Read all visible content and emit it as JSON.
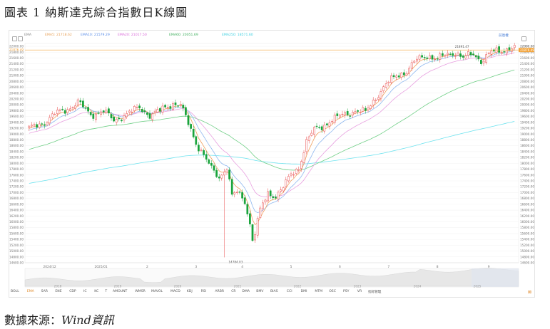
{
  "caption": "圖表 1 納斯達克綜合指數日K線圖",
  "source_label": "數據來源：",
  "source_name": "Wind資訊",
  "toolbar": {
    "ma_label": "EMA",
    "items": [
      {
        "text": "EMA5: 21718.62",
        "color": "#e8a25a"
      },
      {
        "text": "EMA10: 21579.29",
        "color": "#5a8de8"
      },
      {
        "text": "EMA20: 21017.50",
        "color": "#d96bd9"
      },
      {
        "text": "EMA60: 20051.69",
        "color": "#43b060"
      },
      {
        "text": "EMA250: 18571.60",
        "color": "#3fd0e0"
      }
    ],
    "zoom_label": "前復權"
  },
  "indicator_tabs": [
    "BOLL",
    "EMA",
    "SAR",
    "ENE",
    "CDP",
    "IC",
    "KC",
    "T",
    "AMOUNT",
    "WMSR",
    "MAVOL",
    "MACD",
    "KDJ",
    "RSI",
    "ARBR",
    "CR",
    "DMA",
    "BMV",
    "BIAS",
    "CCI",
    "DMI",
    "MTM",
    "OSC",
    "PSY",
    "VR",
    "指标管理"
  ],
  "active_tab": "EMA",
  "colors": {
    "up": "#e84a4a",
    "down": "#19a33b",
    "ema5": "#f0a060",
    "ema10": "#8fb8ef",
    "ema20": "#e8a0e0",
    "ema60": "#6fcf86",
    "ema250": "#6fe3ef",
    "last_price": "#f2a33a"
  },
  "chart_data": {
    "type": "candlestick",
    "title": "",
    "ylim": [
      14600,
      22100
    ],
    "yticks": [
      14600,
      14800,
      15000,
      15200,
      15400,
      15600,
      15800,
      16000,
      16200,
      16400,
      16600,
      16800,
      17000,
      17200,
      17400,
      17600,
      17800,
      18000,
      18200,
      18400,
      18600,
      18800,
      19000,
      19200,
      19400,
      19600,
      19800,
      20000,
      20200,
      20400,
      20600,
      20800,
      21000,
      21200,
      21400,
      21600,
      21800,
      22000
    ],
    "last_price": 21876.49,
    "last_price_label": "21876.49",
    "right_top_label": "22000.00",
    "annotations": [
      {
        "text": "21891.47",
        "candle": 168
      },
      {
        "text": "14784.03",
        "candle": 76
      }
    ],
    "xticks": [
      {
        "label": "2024/12",
        "candle": 8
      },
      {
        "label": "2025/01",
        "candle": 28
      },
      {
        "label": "2",
        "candle": 46
      },
      {
        "label": "3",
        "candle": 65
      },
      {
        "label": "4",
        "candle": 83
      },
      {
        "label": "5",
        "candle": 102
      },
      {
        "label": "6",
        "candle": 121
      },
      {
        "label": "7",
        "candle": 140
      },
      {
        "label": "8",
        "candle": 159
      },
      {
        "label": "9",
        "candle": 179
      }
    ],
    "navigator_years": [
      "2018",
      "2019",
      "2020",
      "2021",
      "2022",
      "2023",
      "2024",
      "2025"
    ],
    "anchors": [
      [
        0,
        19180
      ],
      [
        6,
        19400
      ],
      [
        10,
        19700
      ],
      [
        15,
        19850
      ],
      [
        19,
        20100
      ],
      [
        24,
        19650
      ],
      [
        29,
        19800
      ],
      [
        33,
        19450
      ],
      [
        38,
        19700
      ],
      [
        43,
        19900
      ],
      [
        47,
        19650
      ],
      [
        51,
        19800
      ],
      [
        56,
        20050
      ],
      [
        59,
        20000
      ],
      [
        62,
        19350
      ],
      [
        65,
        18700
      ],
      [
        68,
        18300
      ],
      [
        71,
        17800
      ],
      [
        74,
        17500
      ],
      [
        77,
        17900
      ],
      [
        79,
        16900
      ],
      [
        81,
        17000
      ],
      [
        84,
        16700
      ],
      [
        86,
        15950
      ],
      [
        87,
        15400
      ],
      [
        88,
        15650
      ],
      [
        90,
        16400
      ],
      [
        93,
        16950
      ],
      [
        96,
        16900
      ],
      [
        99,
        17200
      ],
      [
        102,
        17600
      ],
      [
        105,
        17850
      ],
      [
        108,
        18750
      ],
      [
        111,
        19150
      ],
      [
        114,
        19250
      ],
      [
        118,
        19500
      ],
      [
        122,
        19650
      ],
      [
        127,
        19800
      ],
      [
        131,
        19750
      ],
      [
        135,
        20250
      ],
      [
        139,
        20700
      ],
      [
        143,
        21000
      ],
      [
        147,
        21150
      ],
      [
        151,
        21550
      ],
      [
        155,
        21700
      ],
      [
        159,
        21550
      ],
      [
        162,
        21700
      ],
      [
        166,
        21800
      ],
      [
        169,
        21600
      ],
      [
        173,
        21750
      ],
      [
        176,
        21500
      ],
      [
        180,
        21800
      ],
      [
        184,
        21850
      ],
      [
        187,
        21950
      ]
    ]
  }
}
